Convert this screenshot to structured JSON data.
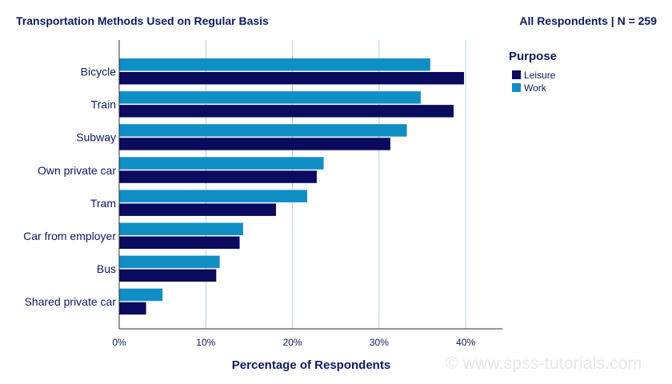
{
  "header": {
    "title": "Transportation Methods Used on Regular Basis",
    "subtitle": "All Respondents | N = 259"
  },
  "watermark": "© www.spss-tutorials.com",
  "colors": {
    "leisure": "#0a0a5e",
    "work": "#108ec6",
    "grid": "#a8d4e6",
    "text": "#0d1b5e"
  },
  "chart_data": {
    "type": "bar",
    "orientation": "horizontal",
    "categories": [
      "Bicycle",
      "Train",
      "Subway",
      "Own private car",
      "Tram",
      "Car from employer",
      "Bus",
      "Shared private car"
    ],
    "series": [
      {
        "name": "Work",
        "values": [
          35.9,
          34.8,
          33.2,
          23.6,
          21.7,
          14.3,
          11.6,
          5.0
        ]
      },
      {
        "name": "Leisure",
        "values": [
          39.8,
          38.6,
          31.3,
          22.8,
          18.1,
          13.9,
          11.2,
          3.1
        ]
      }
    ],
    "legend_title": "Purpose",
    "legend": [
      "Leisure",
      "Work"
    ],
    "legend_position": "top-right",
    "xlabel": "Percentage of Respondents",
    "ylabel": "",
    "xlim": [
      0,
      44
    ],
    "xticks": [
      "0%",
      "10%",
      "20%",
      "30%",
      "40%"
    ],
    "grid": true
  }
}
